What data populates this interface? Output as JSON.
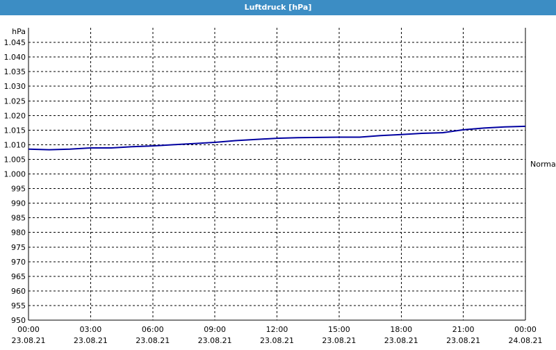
{
  "window": {
    "title": "Luftdruck [hPa]",
    "colors": {
      "titlebar": "#3c8dc4",
      "line": "#0000a0",
      "grid": "#000000"
    }
  },
  "chart_data": {
    "type": "line",
    "title": "Luftdruck [hPa]",
    "ylabel": "hPa",
    "ylim": [
      950,
      1050
    ],
    "yticks": [
      950,
      955,
      960,
      965,
      970,
      975,
      980,
      985,
      990,
      995,
      1000,
      1005,
      1010,
      1015,
      1020,
      1025,
      1030,
      1035,
      1040,
      1045
    ],
    "ytick_labels": [
      "950",
      "955",
      "960",
      "965",
      "970",
      "975",
      "980",
      "985",
      "990",
      "995",
      "1.000",
      "1.005",
      "1.010",
      "1.015",
      "1.020",
      "1.025",
      "1.030",
      "1.035",
      "1.040",
      "1.045"
    ],
    "xlim_hours": [
      0,
      24
    ],
    "xticks": [
      {
        "h": 0,
        "time": "00:00",
        "date": "23.08.21"
      },
      {
        "h": 3,
        "time": "03:00",
        "date": "23.08.21"
      },
      {
        "h": 6,
        "time": "06:00",
        "date": "23.08.21"
      },
      {
        "h": 9,
        "time": "09:00",
        "date": "23.08.21"
      },
      {
        "h": 12,
        "time": "12:00",
        "date": "23.08.21"
      },
      {
        "h": 15,
        "time": "15:00",
        "date": "23.08.21"
      },
      {
        "h": 18,
        "time": "18:00",
        "date": "23.08.21"
      },
      {
        "h": 21,
        "time": "21:00",
        "date": "23.08.21"
      },
      {
        "h": 24,
        "time": "00:00",
        "date": "24.08.21"
      }
    ],
    "grid": true,
    "series": [
      {
        "color": "#0000a0",
        "x_hours": [
          0,
          1,
          2,
          3,
          4,
          5,
          6,
          7,
          8,
          9,
          10,
          11,
          12,
          13,
          14,
          15,
          16,
          17,
          18,
          19,
          20,
          21,
          22,
          23,
          24
        ],
        "values": [
          1008.5,
          1008.3,
          1008.5,
          1008.9,
          1008.9,
          1009.3,
          1009.6,
          1010.0,
          1010.4,
          1010.8,
          1011.4,
          1011.8,
          1012.2,
          1012.4,
          1012.5,
          1012.6,
          1012.6,
          1013.1,
          1013.5,
          1013.9,
          1014.1,
          1015.1,
          1015.7,
          1016.1,
          1016.3
        ]
      }
    ],
    "annotations": [
      {
        "text": "Normal",
        "side": "right",
        "y": 1003.5
      }
    ]
  }
}
